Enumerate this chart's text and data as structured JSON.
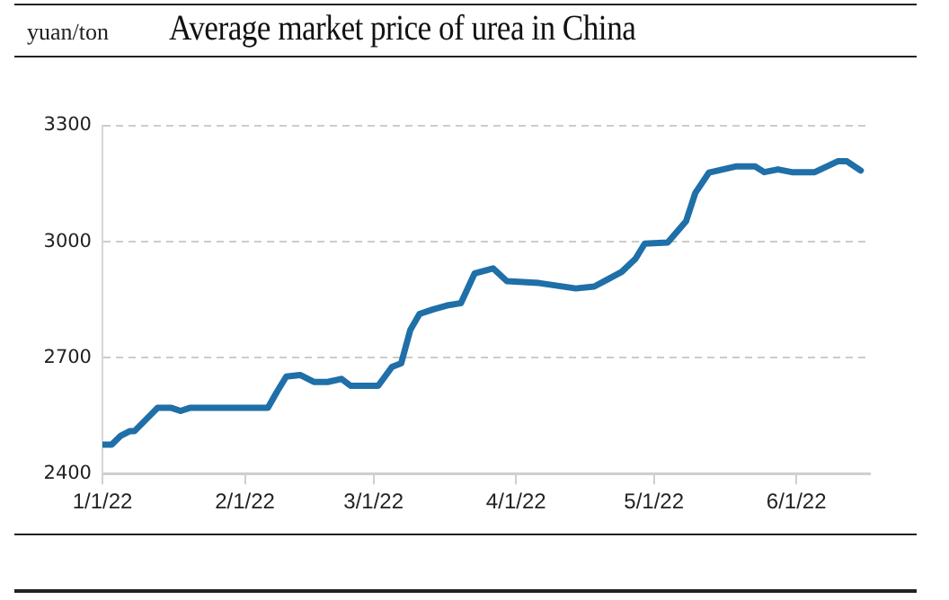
{
  "chart_data": {
    "type": "line",
    "title": "Average market price of urea in China",
    "ylabel": "yuan/ton",
    "series": [
      {
        "color": "#1f6fa8",
        "x": [
          "2022-01-01",
          "2022-01-03",
          "2022-01-05",
          "2022-01-07",
          "2022-01-08",
          "2022-01-11",
          "2022-01-13",
          "2022-01-16",
          "2022-01-18",
          "2022-01-20",
          "2022-02-06",
          "2022-02-08",
          "2022-02-10",
          "2022-02-13",
          "2022-02-16",
          "2022-02-19",
          "2022-02-22",
          "2022-02-24",
          "2022-03-02",
          "2022-03-05",
          "2022-03-07",
          "2022-03-09",
          "2022-03-11",
          "2022-03-14",
          "2022-03-17",
          "2022-03-20",
          "2022-03-23",
          "2022-03-27",
          "2022-03-30",
          "2022-04-06",
          "2022-04-14",
          "2022-04-18",
          "2022-04-21",
          "2022-04-24",
          "2022-04-27",
          "2022-04-29",
          "2022-05-04",
          "2022-05-08",
          "2022-05-10",
          "2022-05-13",
          "2022-05-19",
          "2022-05-23",
          "2022-05-25",
          "2022-05-28",
          "2022-05-31",
          "2022-06-05",
          "2022-06-10",
          "2022-06-12",
          "2022-06-15"
        ],
        "values": [
          2475,
          2475,
          2498,
          2510,
          2510,
          2546,
          2570,
          2570,
          2562,
          2570,
          2570,
          2612,
          2651,
          2655,
          2637,
          2637,
          2645,
          2627,
          2627,
          2676,
          2685,
          2772,
          2813,
          2825,
          2835,
          2841,
          2918,
          2931,
          2898,
          2893,
          2879,
          2884,
          2903,
          2922,
          2956,
          2995,
          2998,
          3053,
          3126,
          3179,
          3195,
          3195,
          3180,
          3187,
          3180,
          3180,
          3208,
          3208,
          3184
        ]
      }
    ],
    "xlim": [
      "2022-01-01",
      "2022-06-17"
    ],
    "xticks": [
      {
        "value": "2022-01-01",
        "label": "1/1/22"
      },
      {
        "value": "2022-02-01",
        "label": "2/1/22"
      },
      {
        "value": "2022-03-01",
        "label": "3/1/22"
      },
      {
        "value": "2022-04-01",
        "label": "4/1/22"
      },
      {
        "value": "2022-05-01",
        "label": "5/1/22"
      },
      {
        "value": "2022-06-01",
        "label": "6/1/22"
      }
    ],
    "ylim": [
      2400,
      3300
    ],
    "yticks": [
      2400,
      2700,
      3000,
      3300
    ],
    "grid": "y",
    "legend": false,
    "marker": "none",
    "line_style": "solid"
  }
}
